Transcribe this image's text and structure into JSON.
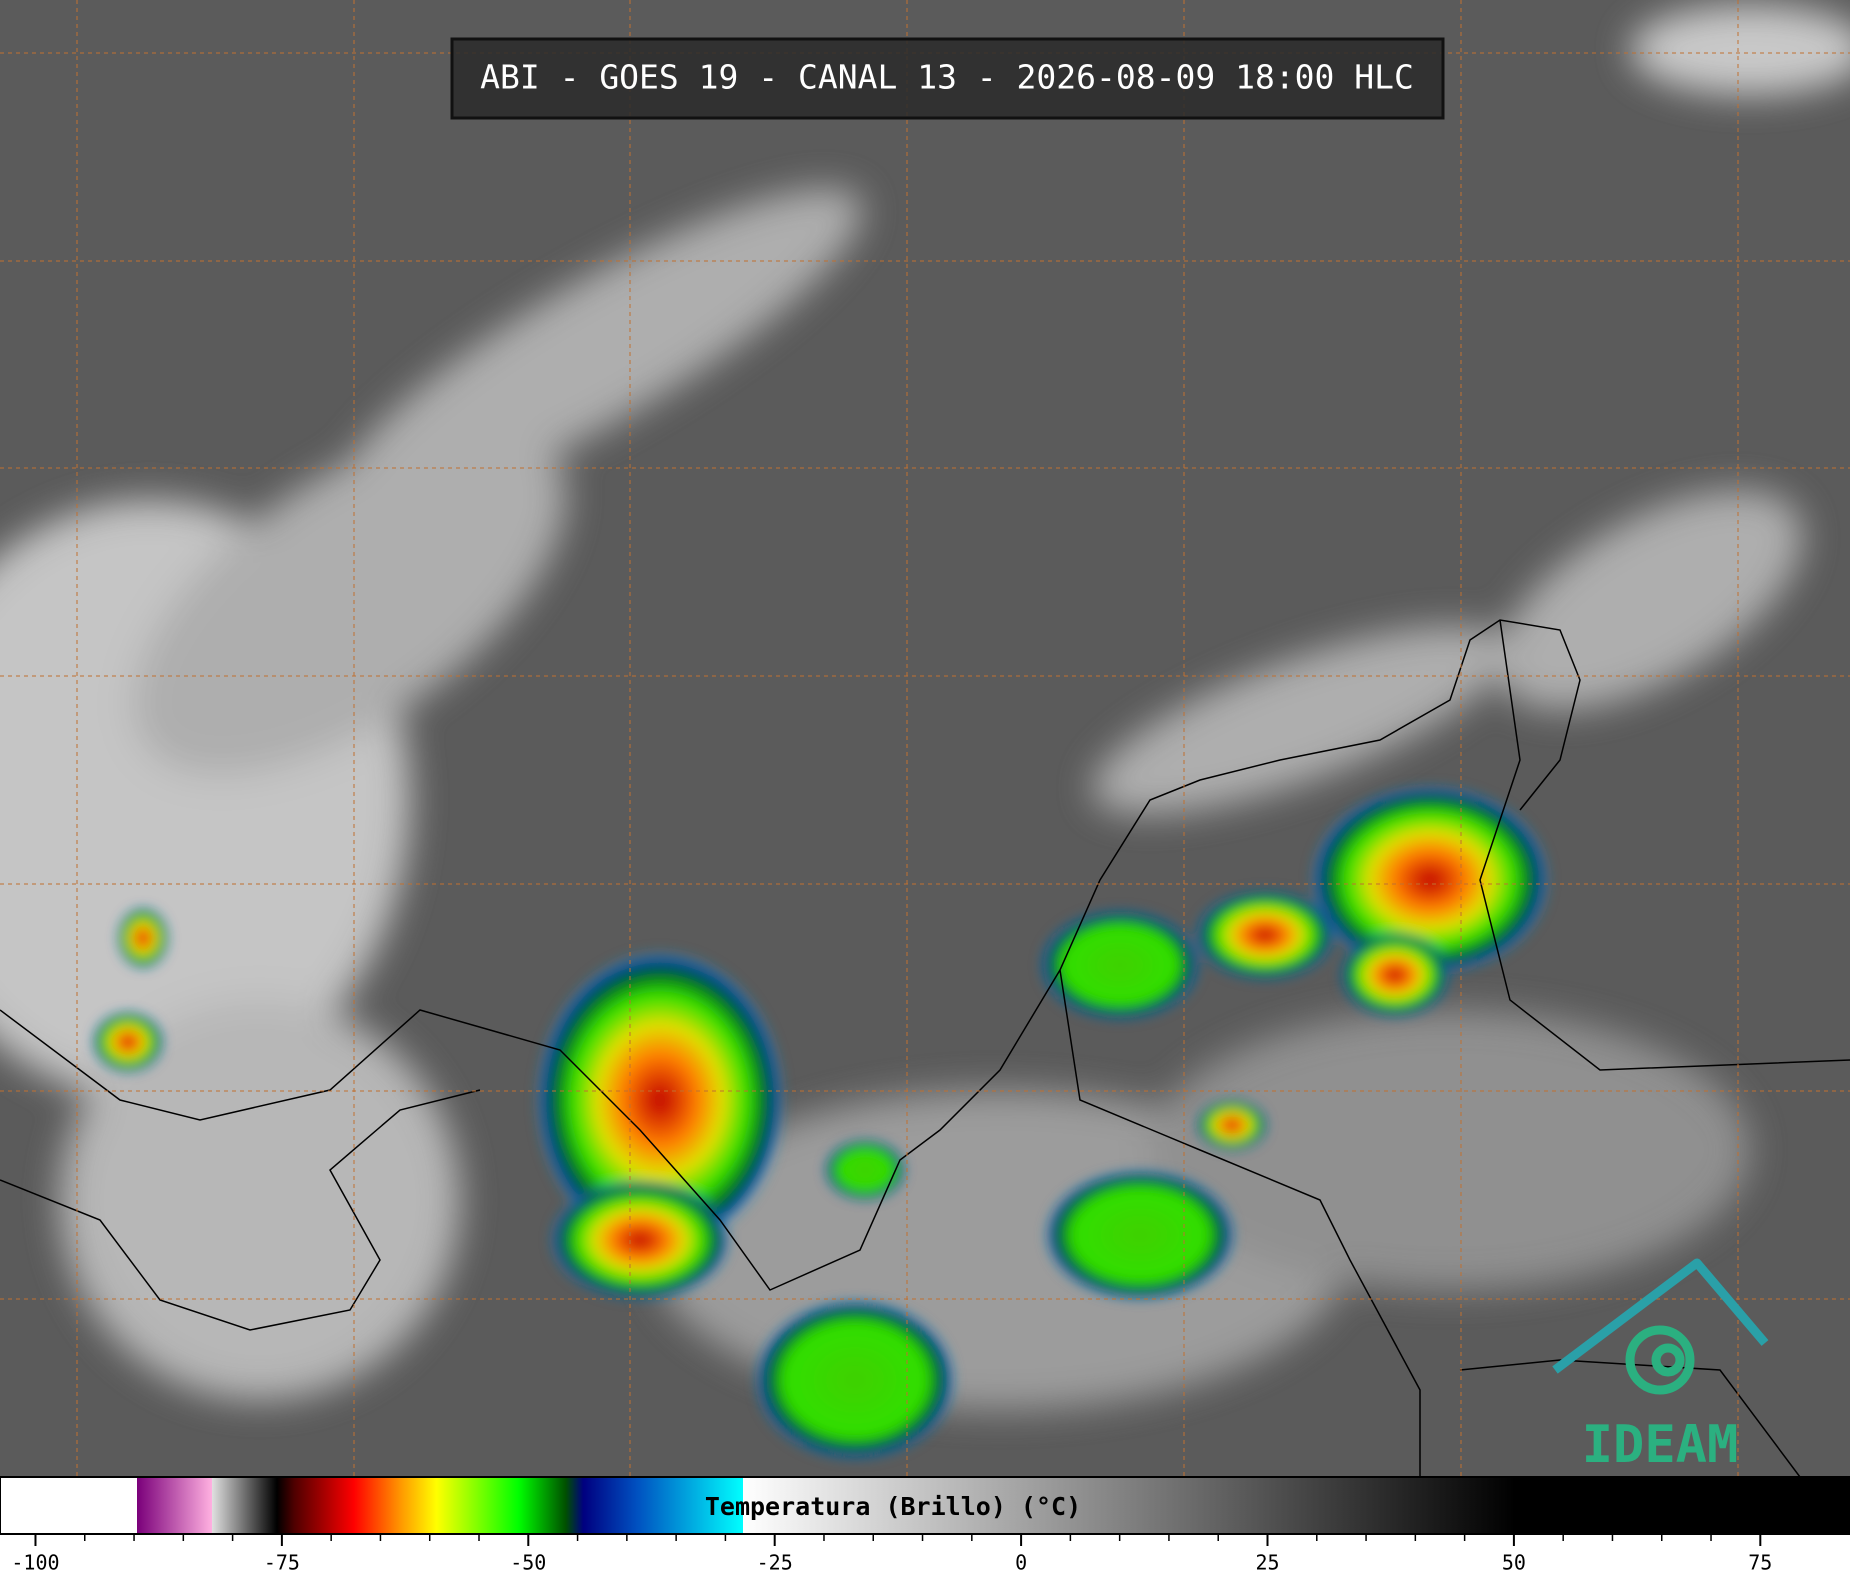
{
  "title": "ABI - GOES 19 - CANAL 13 - 2026-08-09 18:00 HLC",
  "logo": "IDEAM",
  "colorbar": {
    "label": "Temperatura (Brillo) (°C)",
    "xlim": [
      -103.6,
      84.1
    ],
    "xticks": [
      -100,
      -75,
      -50,
      -25,
      0,
      25,
      50,
      75
    ],
    "stops": [
      {
        "value": -103.6,
        "color": "#ffffff"
      },
      {
        "value": -89.7,
        "color": "#ffffff"
      },
      {
        "value": -89.7,
        "color": "#7a007a"
      },
      {
        "value": -82.1,
        "color": "#ffb0e0"
      },
      {
        "value": -82.1,
        "color": "#e0e0e0"
      },
      {
        "value": -75.5,
        "color": "#000000"
      },
      {
        "value": -73.7,
        "color": "#500000"
      },
      {
        "value": -67.7,
        "color": "#ff0000"
      },
      {
        "value": -62.9,
        "color": "#ff9900"
      },
      {
        "value": -59.3,
        "color": "#ffff00"
      },
      {
        "value": -51,
        "color": "#00ff00"
      },
      {
        "value": -46.2,
        "color": "#005000"
      },
      {
        "value": -44.4,
        "color": "#000080"
      },
      {
        "value": -39,
        "color": "#0050c0"
      },
      {
        "value": -28.2,
        "color": "#00ffff"
      },
      {
        "value": -28.2,
        "color": "#ffffff"
      },
      {
        "value": 50.1,
        "color": "#000000"
      },
      {
        "value": 84.1,
        "color": "#000000"
      }
    ]
  }
}
